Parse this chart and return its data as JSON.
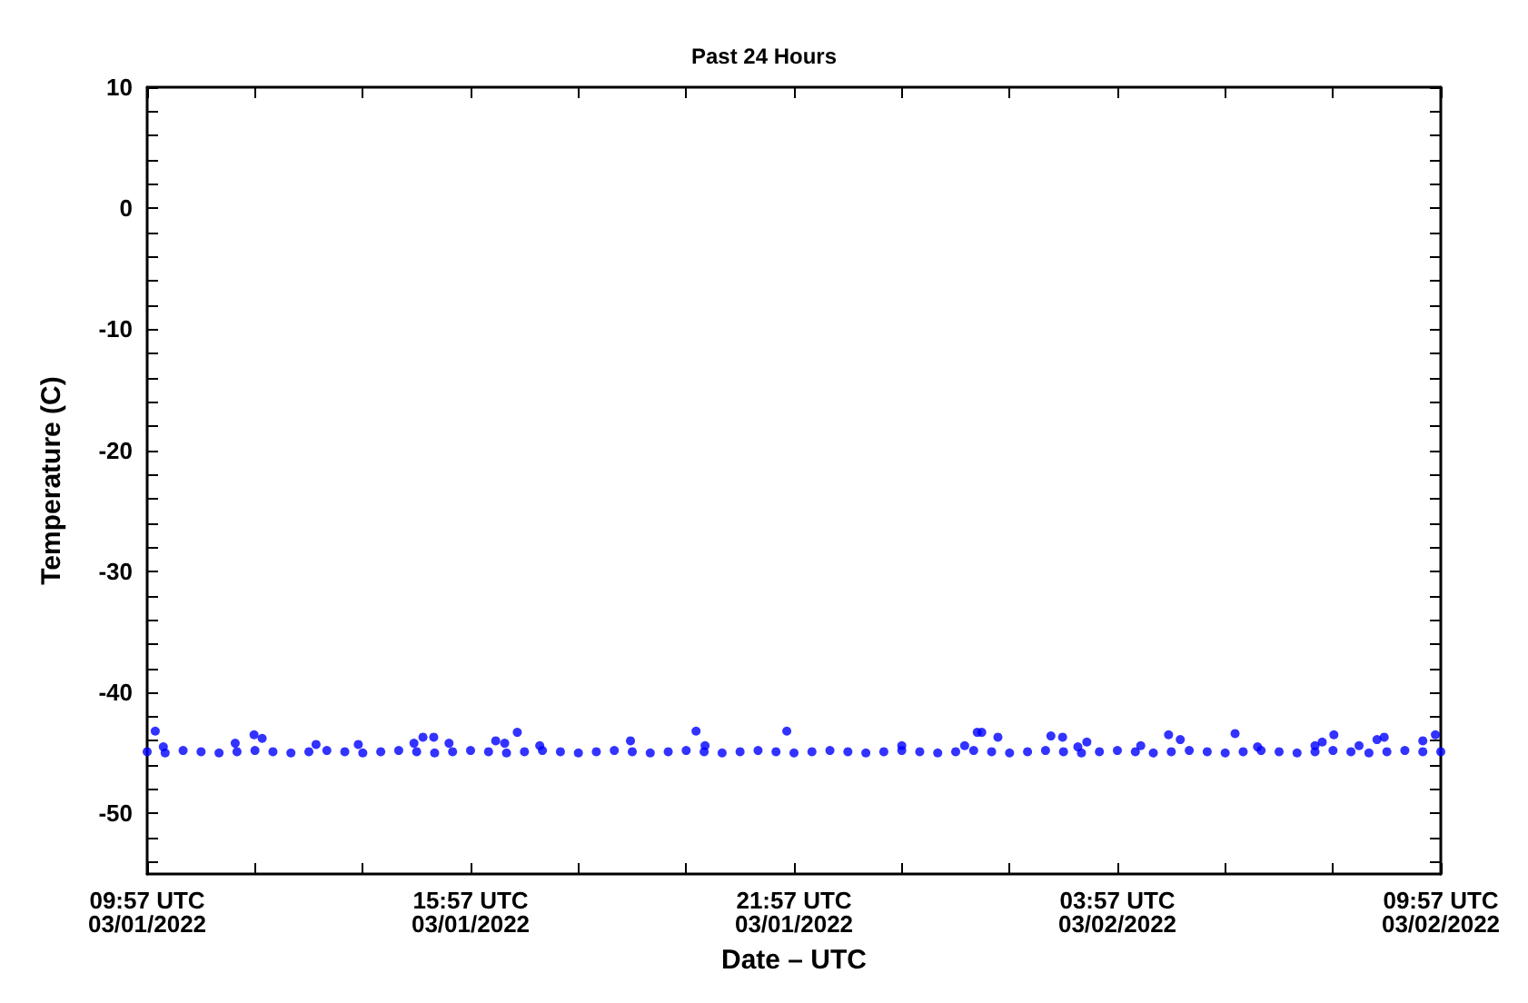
{
  "chart_data": {
    "type": "scatter",
    "title": "Past 24 Hours",
    "xlabel": "Date – UTC",
    "ylabel": "Temperature (C)",
    "marker": "circle",
    "grid": false,
    "xlim": [
      "2022-03-01T09:57",
      "2022-03-02T09:57"
    ],
    "xticks": [
      {
        "value": "2022-03-01T09:57",
        "label": "09:57 UTC\n03/01/2022"
      },
      {
        "value": "2022-03-01T11:57",
        "label": null
      },
      {
        "value": "2022-03-01T13:57",
        "label": null
      },
      {
        "value": "2022-03-01T15:57",
        "label": "15:57 UTC\n03/01/2022"
      },
      {
        "value": "2022-03-01T17:57",
        "label": null
      },
      {
        "value": "2022-03-01T19:57",
        "label": null
      },
      {
        "value": "2022-03-01T21:57",
        "label": "21:57 UTC\n03/01/2022"
      },
      {
        "value": "2022-03-01T23:57",
        "label": null
      },
      {
        "value": "2022-03-02T01:57",
        "label": null
      },
      {
        "value": "2022-03-02T03:57",
        "label": "03:57 UTC\n03/02/2022"
      },
      {
        "value": "2022-03-02T05:57",
        "label": null
      },
      {
        "value": "2022-03-02T07:57",
        "label": null
      },
      {
        "value": "2022-03-02T09:57",
        "label": "09:57 UTC\n03/02/2022"
      }
    ],
    "ylim": [
      -55,
      10
    ],
    "yticks": [
      {
        "value": -54,
        "label": null
      },
      {
        "value": -52,
        "label": null
      },
      -50,
      {
        "value": -48,
        "label": null
      },
      {
        "value": -46,
        "label": null
      },
      {
        "value": -44,
        "label": null
      },
      {
        "value": -42,
        "label": null
      },
      -40,
      {
        "value": -38,
        "label": null
      },
      {
        "value": -36,
        "label": null
      },
      {
        "value": -34,
        "label": null
      },
      {
        "value": -32,
        "label": null
      },
      -30,
      {
        "value": -28,
        "label": null
      },
      {
        "value": -26,
        "label": null
      },
      {
        "value": -24,
        "label": null
      },
      {
        "value": -22,
        "label": null
      },
      -20,
      {
        "value": -18,
        "label": null
      },
      {
        "value": -16,
        "label": null
      },
      {
        "value": -14,
        "label": null
      },
      {
        "value": -12,
        "label": null
      },
      -10,
      {
        "value": -8,
        "label": null
      },
      {
        "value": -6,
        "label": null
      },
      {
        "value": -4,
        "label": null
      },
      {
        "value": -2,
        "label": null
      },
      0,
      {
        "value": 2,
        "label": null
      },
      {
        "value": 4,
        "label": null
      },
      {
        "value": 6,
        "label": null
      },
      {
        "value": 8,
        "label": null
      },
      10
    ],
    "series": [
      {
        "color": "#0000ff",
        "x": [
          "2022-03-01T09:57",
          "2022-03-01T10:17",
          "2022-03-01T10:37",
          "2022-03-01T10:57",
          "2022-03-01T11:17",
          "2022-03-01T11:37",
          "2022-03-01T11:57",
          "2022-03-01T12:17",
          "2022-03-01T12:37",
          "2022-03-01T12:57",
          "2022-03-01T13:17",
          "2022-03-01T13:37",
          "2022-03-01T13:57",
          "2022-03-01T14:17",
          "2022-03-01T14:37",
          "2022-03-01T14:57",
          "2022-03-01T15:17",
          "2022-03-01T15:37",
          "2022-03-01T15:57",
          "2022-03-01T16:17",
          "2022-03-01T16:37",
          "2022-03-01T16:57",
          "2022-03-01T17:17",
          "2022-03-01T17:37",
          "2022-03-01T17:57",
          "2022-03-01T18:17",
          "2022-03-01T18:37",
          "2022-03-01T18:57",
          "2022-03-01T19:17",
          "2022-03-01T19:37",
          "2022-03-01T19:57",
          "2022-03-01T20:17",
          "2022-03-01T20:37",
          "2022-03-01T20:57",
          "2022-03-01T21:17",
          "2022-03-01T21:37",
          "2022-03-01T21:57",
          "2022-03-01T22:17",
          "2022-03-01T22:37",
          "2022-03-01T22:57",
          "2022-03-01T23:17",
          "2022-03-01T23:37",
          "2022-03-01T23:57",
          "2022-03-02T00:17",
          "2022-03-02T00:37",
          "2022-03-02T00:57",
          "2022-03-02T01:17",
          "2022-03-02T01:37",
          "2022-03-02T01:57",
          "2022-03-02T02:17",
          "2022-03-02T02:37",
          "2022-03-02T02:57",
          "2022-03-02T03:17",
          "2022-03-02T03:37",
          "2022-03-02T03:57",
          "2022-03-02T04:17",
          "2022-03-02T04:37",
          "2022-03-02T04:57",
          "2022-03-02T05:17",
          "2022-03-02T05:37",
          "2022-03-02T05:57",
          "2022-03-02T06:17",
          "2022-03-02T06:37",
          "2022-03-02T06:57",
          "2022-03-02T07:17",
          "2022-03-02T07:37",
          "2022-03-02T07:57",
          "2022-03-02T08:17",
          "2022-03-02T08:37",
          "2022-03-02T08:57",
          "2022-03-02T09:17",
          "2022-03-02T09:37",
          "2022-03-02T09:57",
          "2022-03-01T10:06",
          "2022-03-01T10:15",
          "2022-03-01T11:35",
          "2022-03-01T11:56",
          "2022-03-01T12:05",
          "2022-03-01T13:05",
          "2022-03-01T13:52",
          "2022-03-01T14:54",
          "2022-03-01T15:04",
          "2022-03-01T15:16",
          "2022-03-01T15:33",
          "2022-03-01T16:25",
          "2022-03-01T16:35",
          "2022-03-01T16:49",
          "2022-03-01T17:14",
          "2022-03-01T18:55",
          "2022-03-01T20:08",
          "2022-03-01T20:18",
          "2022-03-01T21:49",
          "2022-03-01T23:57",
          "2022-03-02T01:07",
          "2022-03-02T01:21",
          "2022-03-02T01:26",
          "2022-03-02T01:44",
          "2022-03-02T02:43",
          "2022-03-02T02:56",
          "2022-03-02T03:13",
          "2022-03-02T03:23",
          "2022-03-02T04:23",
          "2022-03-02T04:54",
          "2022-03-02T05:07",
          "2022-03-02T06:08",
          "2022-03-02T06:33",
          "2022-03-02T07:37",
          "2022-03-02T07:45",
          "2022-03-02T07:58",
          "2022-03-02T08:26",
          "2022-03-02T08:46",
          "2022-03-02T08:54",
          "2022-03-02T09:37",
          "2022-03-02T09:51"
        ],
        "values": [
          -44.9,
          -45.0,
          -44.8,
          -44.9,
          -45.0,
          -44.9,
          -44.8,
          -44.9,
          -45.0,
          -44.9,
          -44.8,
          -44.9,
          -45.0,
          -44.9,
          -44.8,
          -44.9,
          -45.0,
          -44.9,
          -44.8,
          -44.9,
          -45.0,
          -44.9,
          -44.8,
          -44.9,
          -45.0,
          -44.9,
          -44.8,
          -44.9,
          -45.0,
          -44.9,
          -44.8,
          -44.9,
          -45.0,
          -44.9,
          -44.8,
          -44.9,
          -45.0,
          -44.9,
          -44.8,
          -44.9,
          -45.0,
          -44.9,
          -44.8,
          -44.9,
          -45.0,
          -44.9,
          -44.8,
          -44.9,
          -45.0,
          -44.9,
          -44.8,
          -44.9,
          -45.0,
          -44.9,
          -44.8,
          -44.9,
          -45.0,
          -44.9,
          -44.8,
          -44.9,
          -45.0,
          -44.9,
          -44.8,
          -44.9,
          -45.0,
          -44.9,
          -44.8,
          -44.9,
          -45.0,
          -44.9,
          -44.8,
          -44.9,
          -44.9,
          -43.2,
          -44.5,
          -44.2,
          -43.5,
          -43.8,
          -44.3,
          -44.3,
          -44.2,
          -43.7,
          -43.7,
          -44.2,
          -44.0,
          -44.2,
          -43.3,
          -44.4,
          -44.0,
          -43.2,
          -44.4,
          -43.2,
          -44.4,
          -44.4,
          -43.3,
          -43.3,
          -43.7,
          -43.6,
          -43.7,
          -44.5,
          -44.1,
          -44.4,
          -43.5,
          -43.9,
          -43.4,
          -44.5,
          -44.4,
          -44.1,
          -43.5,
          -44.4,
          -43.9,
          -43.7,
          -44.0,
          -43.5
        ]
      }
    ]
  }
}
